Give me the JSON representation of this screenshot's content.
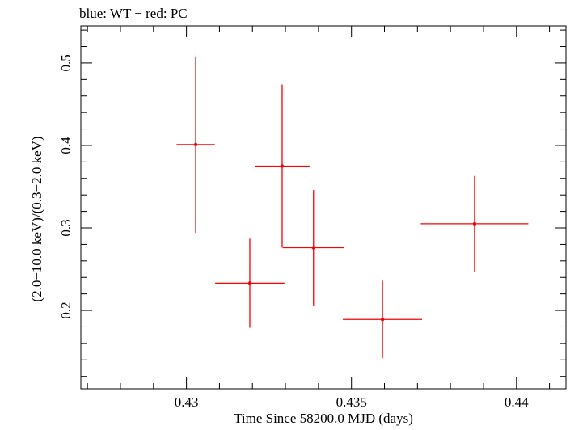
{
  "chart_data": {
    "type": "scatter",
    "title": "blue: WT − red: PC",
    "xlabel": "Time Since 58200.0 MJD (days)",
    "ylabel": "(2.0−10.0 keV)/(0.3−2.0 keV)",
    "xlim": [
      0.4268,
      0.4415
    ],
    "ylim": [
      0.105,
      0.545
    ],
    "x_ticks": [
      {
        "value": 0.43,
        "label": "0.43"
      },
      {
        "value": 0.435,
        "label": "0.435"
      },
      {
        "value": 0.44,
        "label": "0.44"
      }
    ],
    "y_ticks": [
      {
        "value": 0.2,
        "label": "0.2"
      },
      {
        "value": 0.3,
        "label": "0.3"
      },
      {
        "value": 0.4,
        "label": "0.4"
      },
      {
        "value": 0.5,
        "label": "0.5"
      }
    ],
    "series": [
      {
        "name": "PC",
        "color": "#ff0000",
        "points": [
          {
            "x": 0.4329,
            "xerr": 0.00083,
            "y": 0.375,
            "yerr": 0.099
          },
          {
            "x": 0.43028,
            "xerr": 0.00058,
            "y": 0.401,
            "yerr": 0.107
          },
          {
            "x": 0.43192,
            "xerr": 0.00105,
            "y": 0.233,
            "yerr": 0.054
          },
          {
            "x": 0.43385,
            "xerr": 0.00093,
            "y": 0.276,
            "yerr": 0.07
          },
          {
            "x": 0.43594,
            "xerr": 0.0012,
            "y": 0.189,
            "yerr": 0.047
          },
          {
            "x": 0.43873,
            "xerr": 0.00163,
            "y": 0.305,
            "yerr": 0.058
          }
        ]
      }
    ]
  }
}
